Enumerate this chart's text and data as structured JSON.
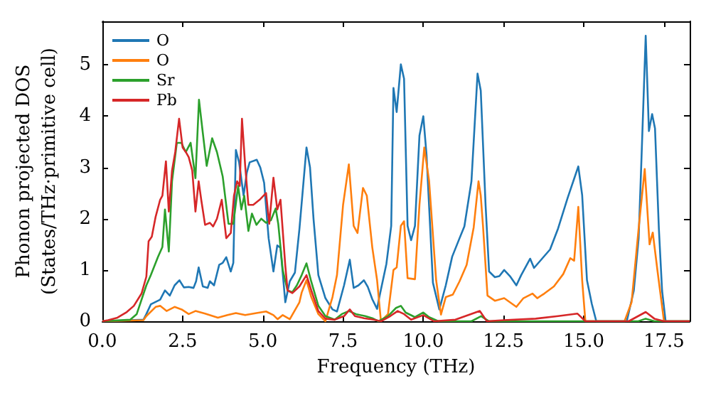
{
  "chart_data": {
    "type": "line",
    "xlabel": "Frequency (THz)",
    "ylabel": "Phonon projected DOS\n(States/THz·primitive cell)",
    "xlim": [
      0,
      18.3
    ],
    "ylim": [
      0,
      5.85
    ],
    "xticks": [
      {
        "value": 0,
        "label": "0.0"
      },
      {
        "value": 2.5,
        "label": "2.5"
      },
      {
        "value": 5,
        "label": "5.0"
      },
      {
        "value": 7.5,
        "label": "7.5"
      },
      {
        "value": 10,
        "label": "10.0"
      },
      {
        "value": 12.5,
        "label": "12.5"
      },
      {
        "value": 15,
        "label": "15.0"
      },
      {
        "value": 17.5,
        "label": "17.5"
      }
    ],
    "yticks": [
      0,
      1,
      2,
      3,
      4,
      5
    ],
    "legend": "top left",
    "series": [
      {
        "name": "O",
        "color": "#1f77b4",
        "x": [
          0,
          1.28,
          1.37,
          1.51,
          1.8,
          1.95,
          2.1,
          2.25,
          2.4,
          2.54,
          2.69,
          2.84,
          2.92,
          3.0,
          3.13,
          3.28,
          3.35,
          3.48,
          3.64,
          3.75,
          3.86,
          4.0,
          4.08,
          4.16,
          4.26,
          4.4,
          4.5,
          4.59,
          4.81,
          4.92,
          5.04,
          5.18,
          5.33,
          5.45,
          5.55,
          5.7,
          5.84,
          6.0,
          6.14,
          6.36,
          6.47,
          6.58,
          6.73,
          6.95,
          7.17,
          7.31,
          7.53,
          7.71,
          7.83,
          7.98,
          8.15,
          8.27,
          8.41,
          8.56,
          8.63,
          8.85,
          9.0,
          9.07,
          9.17,
          9.3,
          9.4,
          9.51,
          9.62,
          9.74,
          9.88,
          10.0,
          10.1,
          10.3,
          10.5,
          10.7,
          10.9,
          11.13,
          11.28,
          11.5,
          11.69,
          11.79,
          11.94,
          12.05,
          12.23,
          12.37,
          12.52,
          12.7,
          12.9,
          13.05,
          13.33,
          13.45,
          13.7,
          13.95,
          14.2,
          14.5,
          14.7,
          14.83,
          14.95,
          15.1,
          15.25,
          15.39,
          16.34,
          16.56,
          16.71,
          16.8,
          16.93,
          17.03,
          17.13,
          17.22,
          17.34,
          17.44,
          17.55,
          18.3
        ],
        "values": [
          0,
          0.03,
          0.14,
          0.33,
          0.42,
          0.6,
          0.5,
          0.7,
          0.8,
          0.66,
          0.67,
          0.65,
          0.78,
          1.05,
          0.68,
          0.65,
          0.78,
          0.7,
          1.1,
          1.14,
          1.25,
          0.97,
          1.14,
          3.34,
          3.1,
          2.45,
          2.9,
          3.1,
          3.15,
          3.0,
          2.7,
          1.62,
          0.97,
          1.48,
          1.43,
          0.37,
          0.78,
          0.95,
          1.8,
          3.39,
          3.0,
          1.99,
          0.9,
          0.45,
          0.23,
          0.19,
          0.7,
          1.2,
          0.65,
          0.7,
          0.8,
          0.67,
          0.43,
          0.24,
          0.47,
          1.12,
          1.86,
          4.55,
          4.08,
          5.01,
          4.73,
          1.86,
          1.58,
          1.86,
          3.62,
          4.0,
          3.25,
          0.75,
          0.23,
          0.7,
          1.26,
          1.62,
          1.85,
          2.73,
          4.83,
          4.5,
          2.27,
          0.97,
          0.86,
          0.88,
          1.0,
          0.88,
          0.7,
          0.9,
          1.22,
          1.04,
          1.22,
          1.4,
          1.81,
          2.41,
          2.78,
          3.02,
          2.46,
          0.8,
          0.34,
          0,
          0,
          0.6,
          1.62,
          3.2,
          5.57,
          3.71,
          4.04,
          3.76,
          1.81,
          0.6,
          0,
          0
        ]
      },
      {
        "name": "O",
        "color": "#ff7f0e",
        "x": [
          0,
          1.28,
          1.37,
          1.66,
          1.8,
          2.0,
          2.25,
          2.47,
          2.69,
          2.9,
          3.2,
          3.6,
          3.9,
          4.16,
          4.45,
          4.8,
          5.1,
          5.33,
          5.46,
          5.62,
          5.84,
          6.14,
          6.21,
          6.36,
          6.51,
          6.73,
          6.95,
          7.17,
          7.31,
          7.5,
          7.68,
          7.83,
          7.95,
          8.12,
          8.24,
          8.41,
          8.56,
          8.68,
          8.9,
          9.07,
          9.17,
          9.3,
          9.4,
          9.51,
          9.74,
          9.88,
          10.03,
          10.18,
          10.4,
          10.55,
          10.7,
          10.92,
          11.13,
          11.35,
          11.57,
          11.72,
          11.79,
          11.86,
          12.0,
          12.23,
          12.52,
          12.9,
          13.12,
          13.4,
          13.55,
          13.77,
          14.07,
          14.36,
          14.58,
          14.7,
          14.83,
          14.95,
          15.05,
          16.27,
          16.49,
          16.71,
          16.9,
          17.05,
          17.15,
          17.3,
          17.5,
          18.3
        ],
        "values": [
          0,
          0.02,
          0.1,
          0.28,
          0.3,
          0.2,
          0.28,
          0.23,
          0.14,
          0.2,
          0.15,
          0.07,
          0.12,
          0.16,
          0.12,
          0.16,
          0.19,
          0.12,
          0.04,
          0.12,
          0.04,
          0.37,
          0.56,
          0.8,
          0.47,
          0.14,
          0,
          0.47,
          0.9,
          2.27,
          3.06,
          1.86,
          1.72,
          2.6,
          2.45,
          1.44,
          0.8,
          0,
          0.14,
          1.0,
          1.05,
          1.86,
          1.95,
          0.84,
          0.82,
          2.27,
          3.39,
          2.74,
          0.8,
          0.13,
          0.47,
          0.52,
          0.78,
          1.1,
          1.83,
          2.73,
          2.45,
          1.86,
          0.5,
          0.4,
          0.45,
          0.28,
          0.45,
          0.54,
          0.45,
          0.54,
          0.68,
          0.92,
          1.23,
          1.18,
          2.23,
          0.8,
          0,
          0,
          0.37,
          1.81,
          2.97,
          1.5,
          1.73,
          0.97,
          0,
          0
        ]
      },
      {
        "name": "Sr",
        "color": "#2ca02c",
        "x": [
          0,
          0.87,
          1.07,
          1.37,
          1.51,
          1.73,
          1.87,
          1.95,
          2.07,
          2.17,
          2.32,
          2.46,
          2.6,
          2.75,
          2.9,
          3.01,
          3.13,
          3.25,
          3.42,
          3.57,
          3.75,
          3.93,
          4.08,
          4.23,
          4.33,
          4.42,
          4.55,
          4.66,
          4.8,
          4.95,
          5.1,
          5.25,
          5.4,
          5.48,
          5.62,
          5.77,
          5.92,
          6.06,
          6.21,
          6.36,
          6.51,
          6.73,
          6.95,
          7.24,
          7.46,
          7.68,
          7.9,
          8.19,
          8.41,
          8.6,
          8.9,
          9.15,
          9.3,
          9.45,
          9.74,
          10.0,
          10.18,
          10.47,
          11.5,
          11.8,
          12.05,
          16.7,
          16.93,
          17.2,
          18.3
        ],
        "values": [
          0,
          0.03,
          0.14,
          0.7,
          0.9,
          1.25,
          1.45,
          2.18,
          1.36,
          2.73,
          3.48,
          3.48,
          3.3,
          3.48,
          2.79,
          4.32,
          3.67,
          3.03,
          3.57,
          3.3,
          2.82,
          1.9,
          1.9,
          2.64,
          2.18,
          2.45,
          1.76,
          2.1,
          1.88,
          2.0,
          1.92,
          1.97,
          2.2,
          1.9,
          1.0,
          0.6,
          0.57,
          0.7,
          0.9,
          1.13,
          0.77,
          0.3,
          0.1,
          0.03,
          0.14,
          0.2,
          0.14,
          0.1,
          0.06,
          0,
          0.1,
          0.26,
          0.3,
          0.17,
          0.08,
          0.17,
          0.08,
          0,
          0,
          0.1,
          0,
          0,
          0.05,
          0,
          0
        ]
      },
      {
        "name": "Pb",
        "color": "#d62728",
        "x": [
          0,
          0.18,
          0.47,
          0.76,
          0.98,
          1.22,
          1.37,
          1.44,
          1.54,
          1.66,
          1.8,
          1.87,
          1.98,
          2.07,
          2.17,
          2.27,
          2.39,
          2.5,
          2.6,
          2.69,
          2.8,
          2.9,
          3.0,
          3.08,
          3.2,
          3.35,
          3.45,
          3.57,
          3.72,
          3.86,
          4.0,
          4.1,
          4.2,
          4.28,
          4.35,
          4.45,
          4.55,
          4.7,
          4.9,
          5.1,
          5.2,
          5.33,
          5.45,
          5.55,
          5.7,
          5.77,
          5.92,
          6.14,
          6.36,
          6.51,
          6.73,
          6.95,
          7.24,
          7.53,
          7.71,
          7.87,
          8.15,
          8.45,
          8.68,
          8.97,
          9.2,
          9.4,
          9.62,
          10.0,
          10.33,
          11.0,
          11.76,
          11.98,
          12.5,
          13.5,
          14.2,
          14.8,
          15.05,
          16.4,
          16.93,
          17.2,
          17.5,
          18.3
        ],
        "values": [
          0,
          0.02,
          0.07,
          0.18,
          0.3,
          0.54,
          0.87,
          1.56,
          1.65,
          2.04,
          2.37,
          2.45,
          3.12,
          2.14,
          2.94,
          3.3,
          3.95,
          3.39,
          3.3,
          3.2,
          2.94,
          2.14,
          2.73,
          2.37,
          1.88,
          1.92,
          1.85,
          2.0,
          2.37,
          1.62,
          1.72,
          2.45,
          2.73,
          2.64,
          3.95,
          3.03,
          2.27,
          2.27,
          2.37,
          2.5,
          1.9,
          2.8,
          2.18,
          2.37,
          1.08,
          0.6,
          0.55,
          0.68,
          0.9,
          0.6,
          0.2,
          0.05,
          0.03,
          0.1,
          0.23,
          0.1,
          0.06,
          0.03,
          0,
          0.1,
          0.2,
          0.14,
          0.03,
          0.12,
          0,
          0.03,
          0.2,
          0,
          0.02,
          0.05,
          0.1,
          0.15,
          0,
          0,
          0.18,
          0.05,
          0,
          0
        ]
      }
    ]
  }
}
